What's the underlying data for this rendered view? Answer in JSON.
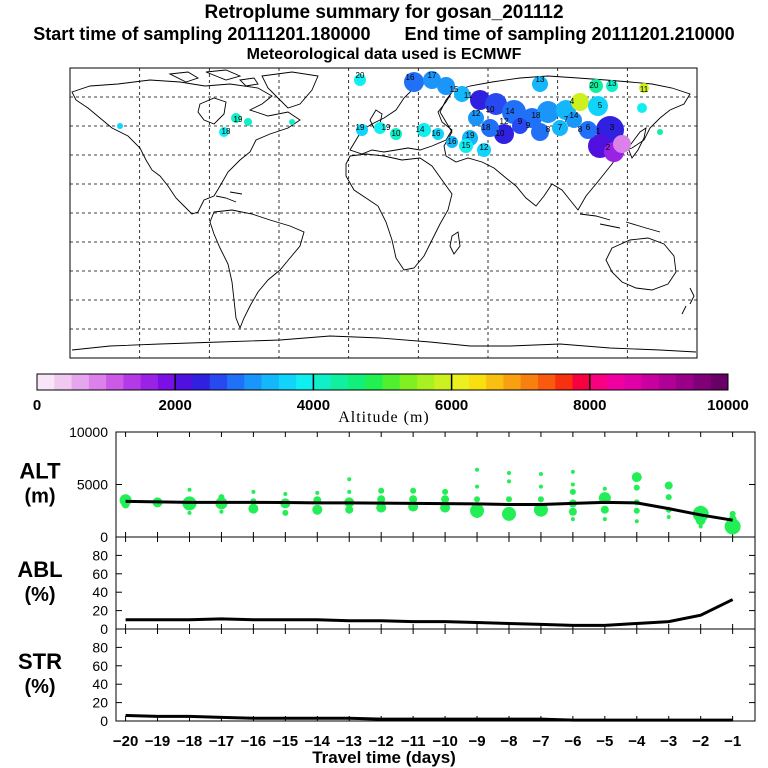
{
  "header": {
    "title": "Retroplume summary for gosan_201112",
    "start": "Start time of sampling 20111201.180000",
    "end": "End time of sampling 20111201.210000",
    "met": "Meteorological data used is ECMWF"
  },
  "colors": {
    "plume_green": "#22ee55",
    "line": "#000000",
    "colorbar": [
      "#f8e6f8",
      "#f0c8f0",
      "#e6a6ee",
      "#dc80ea",
      "#cc5ae6",
      "#b43ae6",
      "#9a22e6",
      "#7a10e6",
      "#5010e0",
      "#3020e0",
      "#2848f0",
      "#2070f8",
      "#1a96fa",
      "#14b8fa",
      "#10d4fa",
      "#10eef0",
      "#10f0c8",
      "#10f0a0",
      "#10f07a",
      "#20f050",
      "#50f030",
      "#80f020",
      "#a8f020",
      "#ccf020",
      "#ecf020",
      "#f8e010",
      "#f8c010",
      "#f8a010",
      "#f88010",
      "#f85a10",
      "#f83010",
      "#f80040",
      "#f80080",
      "#f000a0",
      "#e000a8",
      "#c800a0",
      "#b00098",
      "#980088",
      "#800078",
      "#680068"
    ]
  },
  "colorbar": {
    "tick_labels": [
      "0",
      "2000",
      "4000",
      "6000",
      "8000",
      "10000"
    ],
    "label": "Altitude (m)"
  },
  "map_labels": {
    "numbers": [
      "20",
      "16",
      "17",
      "15",
      "11",
      "13",
      "14",
      "14",
      "4",
      "5",
      "1",
      "2",
      "3",
      "6",
      "7",
      "8",
      "9",
      "10",
      "12",
      "18",
      "19",
      "19",
      "19",
      "19",
      "18",
      "16",
      "16",
      "12",
      "15",
      "14",
      "10",
      "11",
      "13",
      "20",
      "18",
      "8",
      "7",
      "9",
      "12",
      "10"
    ]
  },
  "chart_data": [
    {
      "type": "line",
      "panel": "ALT",
      "ylabel": "ALT\n(m)",
      "ylabel_lines": [
        "ALT",
        "(m)"
      ],
      "ylim": [
        0,
        10000
      ],
      "yticks": [
        "0",
        "5000",
        "10000"
      ],
      "x": [
        -20,
        -19,
        -18,
        -17,
        -16,
        -15,
        -14,
        -13,
        -12,
        -11,
        -10,
        -9,
        -8,
        -7,
        -6,
        -5,
        -4,
        -3,
        -2,
        -1
      ],
      "mean_line": [
        3400,
        3350,
        3300,
        3300,
        3300,
        3280,
        3250,
        3250,
        3230,
        3200,
        3180,
        3150,
        3100,
        3100,
        3200,
        3300,
        3250,
        2700,
        2100,
        1600
      ],
      "scatter_points": [
        {
          "x": -20,
          "y": 3500,
          "s": 6
        },
        {
          "x": -20,
          "y": 3100,
          "s": 4
        },
        {
          "x": -19,
          "y": 3300,
          "s": 5
        },
        {
          "x": -18,
          "y": 3200,
          "s": 7
        },
        {
          "x": -18,
          "y": 4500,
          "s": 2
        },
        {
          "x": -18,
          "y": 2300,
          "s": 2
        },
        {
          "x": -17,
          "y": 3200,
          "s": 6
        },
        {
          "x": -17,
          "y": 3800,
          "s": 3
        },
        {
          "x": -17,
          "y": 2400,
          "s": 2
        },
        {
          "x": -16,
          "y": 2700,
          "s": 5
        },
        {
          "x": -16,
          "y": 3400,
          "s": 3
        },
        {
          "x": -16,
          "y": 4300,
          "s": 2
        },
        {
          "x": -15,
          "y": 3200,
          "s": 5
        },
        {
          "x": -15,
          "y": 2300,
          "s": 3
        },
        {
          "x": -15,
          "y": 4100,
          "s": 2
        },
        {
          "x": -14,
          "y": 2600,
          "s": 5
        },
        {
          "x": -14,
          "y": 3500,
          "s": 4
        },
        {
          "x": -14,
          "y": 4200,
          "s": 2
        },
        {
          "x": -13,
          "y": 3300,
          "s": 5
        },
        {
          "x": -13,
          "y": 2600,
          "s": 4
        },
        {
          "x": -13,
          "y": 4300,
          "s": 2
        },
        {
          "x": -13,
          "y": 5500,
          "s": 2
        },
        {
          "x": -12,
          "y": 2800,
          "s": 5
        },
        {
          "x": -12,
          "y": 3600,
          "s": 4
        },
        {
          "x": -12,
          "y": 4400,
          "s": 3
        },
        {
          "x": -11,
          "y": 2900,
          "s": 5
        },
        {
          "x": -11,
          "y": 3600,
          "s": 4
        },
        {
          "x": -11,
          "y": 4400,
          "s": 3
        },
        {
          "x": -10,
          "y": 2800,
          "s": 5
        },
        {
          "x": -10,
          "y": 3600,
          "s": 4
        },
        {
          "x": -10,
          "y": 4300,
          "s": 3
        },
        {
          "x": -9,
          "y": 2500,
          "s": 7
        },
        {
          "x": -9,
          "y": 2000,
          "s": 2
        },
        {
          "x": -9,
          "y": 3600,
          "s": 3
        },
        {
          "x": -9,
          "y": 6400,
          "s": 2
        },
        {
          "x": -9,
          "y": 4800,
          "s": 2
        },
        {
          "x": -8,
          "y": 2200,
          "s": 7
        },
        {
          "x": -8,
          "y": 3600,
          "s": 3
        },
        {
          "x": -8,
          "y": 5300,
          "s": 2
        },
        {
          "x": -8,
          "y": 6100,
          "s": 2
        },
        {
          "x": -7,
          "y": 2600,
          "s": 7
        },
        {
          "x": -7,
          "y": 3600,
          "s": 3
        },
        {
          "x": -7,
          "y": 6000,
          "s": 2
        },
        {
          "x": -7,
          "y": 4800,
          "s": 2
        },
        {
          "x": -6,
          "y": 2400,
          "s": 4
        },
        {
          "x": -6,
          "y": 3200,
          "s": 4
        },
        {
          "x": -6,
          "y": 4300,
          "s": 3
        },
        {
          "x": -6,
          "y": 5000,
          "s": 2
        },
        {
          "x": -6,
          "y": 6200,
          "s": 2
        },
        {
          "x": -6,
          "y": 1700,
          "s": 2
        },
        {
          "x": -5,
          "y": 3700,
          "s": 6
        },
        {
          "x": -5,
          "y": 2600,
          "s": 4
        },
        {
          "x": -5,
          "y": 4600,
          "s": 2
        },
        {
          "x": -5,
          "y": 1700,
          "s": 2
        },
        {
          "x": -4,
          "y": 5700,
          "s": 5
        },
        {
          "x": -4,
          "y": 4700,
          "s": 3
        },
        {
          "x": -4,
          "y": 3300,
          "s": 3
        },
        {
          "x": -4,
          "y": 2500,
          "s": 3
        },
        {
          "x": -4,
          "y": 1500,
          "s": 2
        },
        {
          "x": -3,
          "y": 4900,
          "s": 4
        },
        {
          "x": -3,
          "y": 3800,
          "s": 3
        },
        {
          "x": -3,
          "y": 2600,
          "s": 3
        },
        {
          "x": -3,
          "y": 1900,
          "s": 2
        },
        {
          "x": -2,
          "y": 2200,
          "s": 8
        },
        {
          "x": -2,
          "y": 1600,
          "s": 5
        },
        {
          "x": -2,
          "y": 2700,
          "s": 3
        },
        {
          "x": -2,
          "y": 1000,
          "s": 2
        },
        {
          "x": -1,
          "y": 1000,
          "s": 8
        },
        {
          "x": -1,
          "y": 1700,
          "s": 4
        },
        {
          "x": -1,
          "y": 2200,
          "s": 3
        }
      ]
    },
    {
      "type": "line",
      "panel": "ABL",
      "ylabel": "ABL\n(%)",
      "ylabel_lines": [
        "ABL",
        "(%)"
      ],
      "ylim": [
        0,
        100
      ],
      "yticks": [
        "0",
        "20",
        "40",
        "60",
        "80"
      ],
      "x": [
        -20,
        -19,
        -18,
        -17,
        -16,
        -15,
        -14,
        -13,
        -12,
        -11,
        -10,
        -9,
        -8,
        -7,
        -6,
        -5,
        -4,
        -3,
        -2,
        -1
      ],
      "values": [
        10,
        10,
        10,
        11,
        10,
        10,
        10,
        9,
        9,
        8,
        8,
        7,
        6,
        5,
        4,
        4,
        6,
        8,
        15,
        32
      ]
    },
    {
      "type": "line",
      "panel": "STR",
      "ylabel": "STR\n(%)",
      "ylabel_lines": [
        "STR",
        "(%)"
      ],
      "ylim": [
        0,
        100
      ],
      "yticks": [
        "0",
        "20",
        "40",
        "60",
        "80"
      ],
      "x": [
        -20,
        -19,
        -18,
        -17,
        -16,
        -15,
        -14,
        -13,
        -12,
        -11,
        -10,
        -9,
        -8,
        -7,
        -6,
        -5,
        -4,
        -3,
        -2,
        -1
      ],
      "values": [
        6,
        5,
        5,
        4,
        3,
        3,
        3,
        3,
        2,
        2,
        2,
        2,
        2,
        2,
        1,
        1,
        1,
        1,
        1,
        1
      ],
      "xlabel": "Travel time (days)",
      "xticks": [
        "−20",
        "−19",
        "−18",
        "−17",
        "−16",
        "−15",
        "−14",
        "−13",
        "−12",
        "−11",
        "−10",
        "−9",
        "−8",
        "−7",
        "−6",
        "−5",
        "−4",
        "−3",
        "−2",
        "−1"
      ]
    }
  ]
}
